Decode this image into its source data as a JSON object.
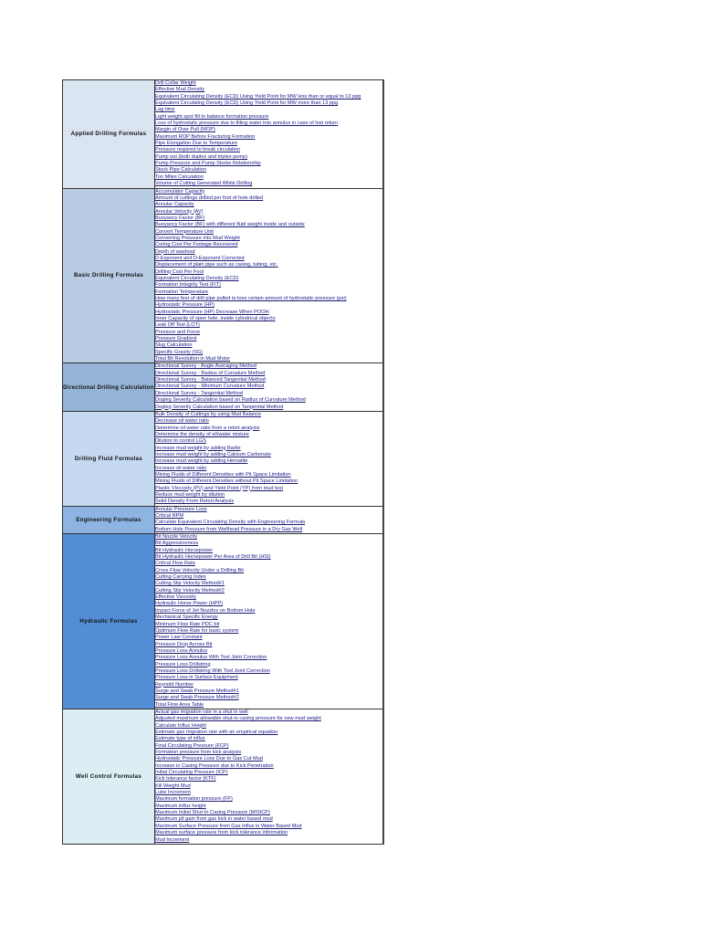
{
  "sections": [
    {
      "title": "Applied Drilling Formulas",
      "color": "#dbe5f1",
      "items": [
        "Drill Collar Weight",
        "Effective Mud Density",
        "Equivalent Circulating Density (ECD) Using Yield Point for MW less than or equal to 13 ppg",
        "Equivalent Circulating Density (ECD) Using Yield Point for MW more than 13 ppg",
        "Lag time",
        "Light weight spot fill to balance formation pressure",
        "Loss of hydrostatic pressure due to filling water into annulus in case of lost return",
        "Margin of Over Pull (MOP)",
        "Maximum ROP Before Fracturing Formation",
        "Pipe Elongation Due to Temperature",
        "Pressure required to break circulation",
        "Pump out (both duplex and triplex pump)",
        "Pump Pressure and Pump Stroke Relationship",
        "Stuck Pipe Calculation",
        "Ton Miles Calculation",
        "Volume of Cutting Generated While Drilling"
      ]
    },
    {
      "title": "Basic Drilling Formulas",
      "color": "#b8cce4",
      "items": [
        "Accumulator Capacity",
        "Amount of cuttings drilled per foot of hole drilled",
        "Annular Capacity",
        "Annular Velocity (AV)",
        "Buoyancy Factor (BF)",
        "Buoyancy Factor (BF) with different fluid weight inside and outside",
        "Convert Temperature Unit",
        "Converting Pressure into Mud Weight",
        "Coring Cost Per Footage Recovered",
        "Depth of washout",
        "D-Exponent and D-Exponent Corrected",
        "Displacement of plain pipe such as casing, tubing, etc.",
        "Drilling Cost Per Foot",
        "Equivalent Circulating Density (ECD)",
        "Formation Integrity Test (FIT)",
        "Formation Temperature",
        "How many feet of drill pipe pulled to lose certain amount of hydrostatic pressure (psi)",
        "Hydrostatic Pressure (HP)",
        "Hydrostatic Pressure (HP) Decrease When POOH",
        "Inner Capacity of open hole, inside cylindrical objects",
        "Leak Off Test (LOT)",
        "Pressure and Force",
        "Pressure Gradient",
        "Slug Calculation",
        "Specific Gravity (SG)",
        "Total Bit Revolution in Mud Motor"
      ]
    },
    {
      "title": "Directional Drilling Calculation",
      "color": "#95b3d7",
      "items": [
        "Directional Survey - Angle Averaging Method",
        "Directional Survey - Radius of Curvature Method",
        "Directional Survey - Balanced Tangential Method",
        "Directional Survey - Minimum Curvature Method",
        "Directional Survey - Tangential Method",
        "Dogleg Severity Calculation based on Radius of Curvature Method",
        "Dogleg Severity Calculation based on Tangential Method"
      ]
    },
    {
      "title": "Drilling Fluid Formulas",
      "color": "#c5d9f1",
      "items": [
        "Bulk Density of Cuttings by using Mud Balance",
        "Decrease oil water ratio",
        "Determine oil water ratio from a retort analysis",
        "Determine the density of oil/water mixture",
        "Dilution to control LGS",
        "Increase mud weight by adding Barite",
        "Increase mud weight by adding Calcium Carbonate",
        "Increase mud weight by adding Hematite",
        "Increase oil water ratio",
        "Mixing Fluids of Different Densities with Pit Space Limitation",
        "Mixing Fluids of Different Densities without Pit Space Limitation",
        "Plastic Viscosity (PV) and Yield Point (YP) from mud test",
        "Reduce mud weight by dilution",
        "Solid Density From Retort Analysis"
      ]
    },
    {
      "title": "Engineering Formulas",
      "color": "#8db4e2",
      "items": [
        "Annular Pressure Loss",
        "Critical RPM",
        "Calculate Equivalent Circulating Density with Engineering Formula",
        "Bottom Hole Pressure from Wellhead Pressure in a Dry Gas Well"
      ]
    },
    {
      "title": "Hydraulic Formulas",
      "color": "#538dd5",
      "items": [
        "Bit Nozzle Velocity",
        "Bit Aggressiveness",
        "Bit Hydraulic Horsepower",
        "Bit Hydraulic Horsepower Per Area of Drill Bit (HSI)",
        "Critical Flow Rate",
        "Cross Flow Velocity Under a Drilling Bit",
        "Cutting Carrying Index",
        "Cutting Slip Velocity Method#1",
        "Cutting Slip Velocity Method#2",
        "Effective Viscosity",
        "Hydraulic Horse Power (HPP)",
        "Impact Force of Jet Nozzles on Bottom Hole",
        "Mechanical Specific Energy",
        "Minimum Flow Rate PDC bit",
        "Optimum Flow Rate for basic system",
        "Power Law Constant",
        "Pressure Drop Across Bit",
        "Pressure Loss Annulus",
        "Pressure Loss Annulus With Tool Joint Correction",
        "Pressure Loss Drillstring",
        "Pressure Loss Drillstring With Tool Joint Correction",
        "Pressure Loss in Surface Equipment",
        "Reynold Number",
        "Surge and Swab Pressure Method#1",
        "Surge and Swab Pressure Method#2",
        "Total Flow Area Table"
      ]
    },
    {
      "title": "Well Control Formulas",
      "color": "#daeef3",
      "items": [
        "Actual gas migration rate in a shut in well",
        "Adjusted maximum allowable shut-in casing pressure for new mud weight",
        "Calculate Influx Height",
        "Estimate gas migration rate with an empirical equation",
        "Estimate type of influx",
        "Final Circulating Pressure (FCP)",
        "Formation pressure from kick analysis",
        "Hydrostatic Pressure Loss Due to Gas Cut Mud",
        "Increase in Casing Pressure due to Kick Penetration",
        "Initial Circulating Pressure (ICP)",
        "Kick tolerance factor (KTF)",
        "Kill Weight Mud",
        "Lube Increment",
        "Maximum formation pressure (FP)",
        "Maximum influx height",
        "Maximum Initial Shut-In Casing Pressure (MISICP)",
        "Maximum pit gain from gas kick in water based mud",
        "Maximum Surface Pressure from Gas Influx in Water Based Mud",
        "Maximum surface pressure from kick tolerance information",
        "Mud Increment"
      ]
    }
  ]
}
